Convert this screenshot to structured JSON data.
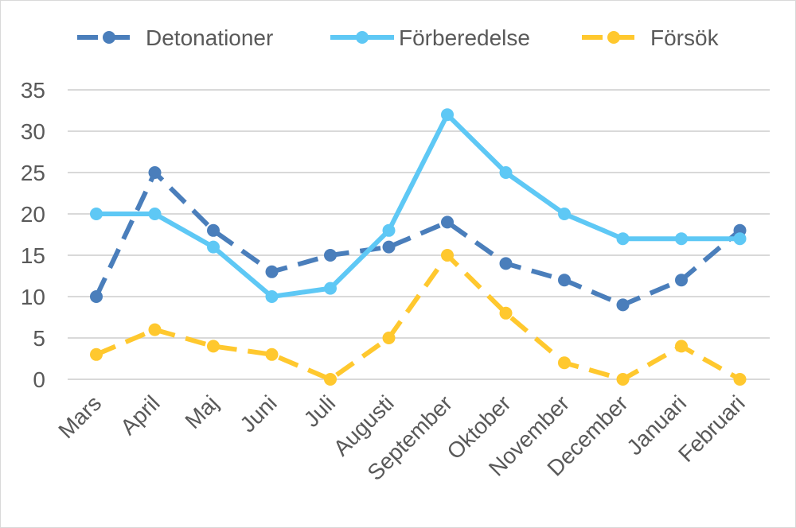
{
  "chart_data": {
    "type": "line",
    "title": "",
    "xlabel": "",
    "ylabel": "",
    "ylim": [
      0,
      35
    ],
    "yticks": [
      0,
      5,
      10,
      15,
      20,
      25,
      30,
      35
    ],
    "grid": true,
    "legend_position": "top",
    "categories": [
      "Mars",
      "April",
      "Maj",
      "Juni",
      "Juli",
      "Augusti",
      "September",
      "Oktober",
      "November",
      "December",
      "Januari",
      "Februari"
    ],
    "series": [
      {
        "name": "Detonationer",
        "color": "#4a7ebb",
        "dashed": true,
        "values": [
          10,
          25,
          18,
          13,
          15,
          16,
          19,
          14,
          12,
          9,
          12,
          18
        ]
      },
      {
        "name": "Förberedelse",
        "color": "#5ec8f5",
        "dashed": false,
        "values": [
          20,
          20,
          16,
          10,
          11,
          18,
          32,
          25,
          20,
          17,
          17,
          17
        ]
      },
      {
        "name": "Försök",
        "color": "#ffc82e",
        "dashed": true,
        "values": [
          3,
          6,
          4,
          3,
          0,
          5,
          15,
          8,
          2,
          0,
          4,
          0
        ]
      }
    ]
  }
}
